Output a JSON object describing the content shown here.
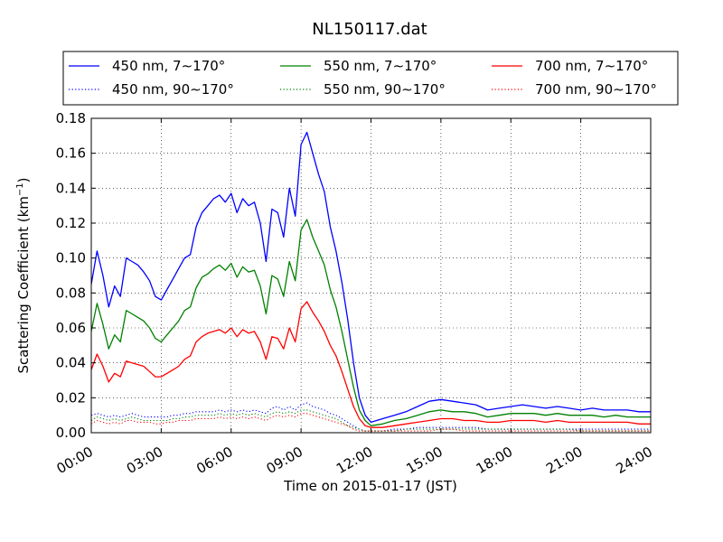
{
  "chart_data": {
    "type": "line",
    "title": "NL150117.dat",
    "xlabel": "Time on 2015-01-17 (JST)",
    "ylabel": "Scattering Coefficient (km",
    "ylabel_superscript": "−1",
    "ylabel_suffix": ")",
    "xlim_hours": [
      0,
      24
    ],
    "ylim": [
      0,
      0.18
    ],
    "x_ticks": [
      {
        "hour": 0,
        "label": "00:00"
      },
      {
        "hour": 3,
        "label": "03:00"
      },
      {
        "hour": 6,
        "label": "06:00"
      },
      {
        "hour": 9,
        "label": "09:00"
      },
      {
        "hour": 12,
        "label": "12:00"
      },
      {
        "hour": 15,
        "label": "15:00"
      },
      {
        "hour": 18,
        "label": "18:00"
      },
      {
        "hour": 21,
        "label": "21:00"
      },
      {
        "hour": 24,
        "label": "24:00"
      }
    ],
    "y_ticks": [
      {
        "value": 0.0,
        "label": "0.00"
      },
      {
        "value": 0.02,
        "label": "0.02"
      },
      {
        "value": 0.04,
        "label": "0.04"
      },
      {
        "value": 0.06,
        "label": "0.06"
      },
      {
        "value": 0.08,
        "label": "0.08"
      },
      {
        "value": 0.1,
        "label": "0.10"
      },
      {
        "value": 0.12,
        "label": "0.12"
      },
      {
        "value": 0.14,
        "label": "0.14"
      },
      {
        "value": 0.16,
        "label": "0.16"
      },
      {
        "value": 0.18,
        "label": "0.18"
      }
    ],
    "grid": true,
    "legend_position": "top",
    "x_hours": [
      0,
      0.25,
      0.5,
      0.75,
      1.0,
      1.25,
      1.5,
      1.75,
      2.0,
      2.25,
      2.5,
      2.75,
      3.0,
      3.25,
      3.5,
      3.75,
      4.0,
      4.25,
      4.5,
      4.75,
      5.0,
      5.25,
      5.5,
      5.75,
      6.0,
      6.25,
      6.5,
      6.75,
      7.0,
      7.25,
      7.5,
      7.75,
      8.0,
      8.25,
      8.5,
      8.75,
      9.0,
      9.25,
      9.5,
      9.75,
      10.0,
      10.25,
      10.5,
      10.75,
      11.0,
      11.25,
      11.5,
      11.75,
      12.0,
      12.5,
      13.0,
      13.5,
      14.0,
      14.5,
      15.0,
      15.5,
      16.0,
      16.5,
      17.0,
      17.5,
      18.0,
      18.5,
      19.0,
      19.5,
      20.0,
      20.5,
      21.0,
      21.5,
      22.0,
      22.5,
      23.0,
      23.5,
      24.0
    ],
    "series": [
      {
        "name": "450 nm, 7∼170°",
        "color": "#0000ff",
        "style": "solid",
        "values": [
          0.085,
          0.104,
          0.09,
          0.072,
          0.084,
          0.078,
          0.1,
          0.098,
          0.096,
          0.092,
          0.087,
          0.078,
          0.076,
          0.082,
          0.088,
          0.094,
          0.1,
          0.102,
          0.118,
          0.126,
          0.13,
          0.134,
          0.136,
          0.132,
          0.137,
          0.126,
          0.134,
          0.13,
          0.132,
          0.12,
          0.098,
          0.128,
          0.126,
          0.112,
          0.14,
          0.124,
          0.165,
          0.172,
          0.16,
          0.148,
          0.138,
          0.118,
          0.104,
          0.086,
          0.065,
          0.04,
          0.02,
          0.01,
          0.006,
          0.008,
          0.01,
          0.012,
          0.015,
          0.018,
          0.019,
          0.018,
          0.017,
          0.016,
          0.013,
          0.014,
          0.015,
          0.016,
          0.015,
          0.014,
          0.015,
          0.014,
          0.013,
          0.014,
          0.013,
          0.013,
          0.013,
          0.012,
          0.012
        ]
      },
      {
        "name": "550 nm, 7∼170°",
        "color": "#008000",
        "style": "solid",
        "values": [
          0.058,
          0.074,
          0.062,
          0.048,
          0.056,
          0.052,
          0.07,
          0.068,
          0.066,
          0.064,
          0.06,
          0.054,
          0.052,
          0.056,
          0.06,
          0.064,
          0.07,
          0.072,
          0.083,
          0.089,
          0.091,
          0.094,
          0.096,
          0.093,
          0.097,
          0.089,
          0.095,
          0.092,
          0.093,
          0.084,
          0.068,
          0.09,
          0.088,
          0.078,
          0.098,
          0.087,
          0.116,
          0.122,
          0.112,
          0.104,
          0.096,
          0.082,
          0.072,
          0.058,
          0.042,
          0.026,
          0.013,
          0.007,
          0.004,
          0.005,
          0.007,
          0.008,
          0.01,
          0.012,
          0.013,
          0.012,
          0.012,
          0.011,
          0.009,
          0.01,
          0.011,
          0.011,
          0.011,
          0.01,
          0.011,
          0.01,
          0.01,
          0.01,
          0.009,
          0.01,
          0.009,
          0.009,
          0.009
        ]
      },
      {
        "name": "700 nm, 7∼170°",
        "color": "#ff0000",
        "style": "solid",
        "values": [
          0.036,
          0.045,
          0.038,
          0.029,
          0.034,
          0.032,
          0.041,
          0.04,
          0.039,
          0.038,
          0.035,
          0.032,
          0.032,
          0.034,
          0.036,
          0.038,
          0.042,
          0.044,
          0.052,
          0.055,
          0.057,
          0.058,
          0.059,
          0.057,
          0.06,
          0.055,
          0.059,
          0.057,
          0.058,
          0.052,
          0.042,
          0.055,
          0.054,
          0.048,
          0.06,
          0.052,
          0.071,
          0.075,
          0.069,
          0.064,
          0.058,
          0.05,
          0.044,
          0.035,
          0.025,
          0.015,
          0.008,
          0.004,
          0.003,
          0.003,
          0.004,
          0.005,
          0.006,
          0.007,
          0.008,
          0.008,
          0.007,
          0.007,
          0.006,
          0.006,
          0.007,
          0.007,
          0.007,
          0.006,
          0.007,
          0.006,
          0.006,
          0.006,
          0.006,
          0.006,
          0.006,
          0.005,
          0.005
        ]
      },
      {
        "name": "450 nm, 90∼170°",
        "color": "#0000ff",
        "style": "dotted",
        "values": [
          0.01,
          0.011,
          0.01,
          0.009,
          0.01,
          0.009,
          0.01,
          0.011,
          0.01,
          0.009,
          0.009,
          0.009,
          0.009,
          0.009,
          0.01,
          0.01,
          0.011,
          0.011,
          0.012,
          0.012,
          0.012,
          0.012,
          0.013,
          0.012,
          0.013,
          0.012,
          0.013,
          0.012,
          0.013,
          0.012,
          0.011,
          0.014,
          0.015,
          0.013,
          0.015,
          0.013,
          0.016,
          0.017,
          0.015,
          0.014,
          0.013,
          0.011,
          0.01,
          0.008,
          0.006,
          0.004,
          0.002,
          0.001,
          0.001,
          0.001,
          0.002,
          0.002,
          0.003,
          0.003,
          0.003,
          0.003,
          0.003,
          0.003,
          0.002,
          0.002,
          0.002,
          0.002,
          0.002,
          0.002,
          0.002,
          0.002,
          0.002,
          0.002,
          0.002,
          0.002,
          0.002,
          0.002,
          0.002
        ]
      },
      {
        "name": "550 nm, 90∼170°",
        "color": "#008000",
        "style": "dotted",
        "values": [
          0.007,
          0.009,
          0.008,
          0.007,
          0.008,
          0.007,
          0.008,
          0.009,
          0.008,
          0.007,
          0.007,
          0.007,
          0.007,
          0.007,
          0.008,
          0.008,
          0.009,
          0.009,
          0.01,
          0.01,
          0.01,
          0.01,
          0.011,
          0.01,
          0.011,
          0.01,
          0.011,
          0.01,
          0.011,
          0.01,
          0.009,
          0.011,
          0.012,
          0.011,
          0.012,
          0.011,
          0.013,
          0.013,
          0.012,
          0.011,
          0.01,
          0.009,
          0.008,
          0.006,
          0.004,
          0.003,
          0.002,
          0.001,
          0.001,
          0.001,
          0.001,
          0.002,
          0.002,
          0.002,
          0.002,
          0.002,
          0.002,
          0.002,
          0.002,
          0.002,
          0.002,
          0.002,
          0.002,
          0.002,
          0.002,
          0.002,
          0.001,
          0.001,
          0.001,
          0.001,
          0.001,
          0.001,
          0.001
        ]
      },
      {
        "name": "700 nm, 90∼170°",
        "color": "#ff0000",
        "style": "dotted",
        "values": [
          0.005,
          0.007,
          0.006,
          0.005,
          0.006,
          0.005,
          0.007,
          0.007,
          0.006,
          0.006,
          0.006,
          0.005,
          0.005,
          0.006,
          0.006,
          0.007,
          0.007,
          0.007,
          0.008,
          0.008,
          0.008,
          0.008,
          0.009,
          0.008,
          0.009,
          0.008,
          0.009,
          0.008,
          0.009,
          0.008,
          0.007,
          0.009,
          0.01,
          0.009,
          0.01,
          0.009,
          0.011,
          0.011,
          0.01,
          0.009,
          0.008,
          0.007,
          0.006,
          0.005,
          0.004,
          0.002,
          0.001,
          0.001,
          0.001,
          0.001,
          0.001,
          0.001,
          0.001,
          0.001,
          0.002,
          0.002,
          0.001,
          0.001,
          0.001,
          0.001,
          0.001,
          0.001,
          0.001,
          0.001,
          0.001,
          0.001,
          0.001,
          0.001,
          0.001,
          0.001,
          0.001,
          0.001,
          0.001
        ]
      }
    ],
    "legend_entries": [
      {
        "label": "450 nm, 7∼170°",
        "color": "#0000ff",
        "style": "solid"
      },
      {
        "label": "550 nm, 7∼170°",
        "color": "#008000",
        "style": "solid"
      },
      {
        "label": "700 nm, 7∼170°",
        "color": "#ff0000",
        "style": "solid"
      },
      {
        "label": "450 nm, 90∼170°",
        "color": "#0000ff",
        "style": "dotted"
      },
      {
        "label": "550 nm, 90∼170°",
        "color": "#008000",
        "style": "dotted"
      },
      {
        "label": "700 nm, 90∼170°",
        "color": "#ff0000",
        "style": "dotted"
      }
    ]
  }
}
